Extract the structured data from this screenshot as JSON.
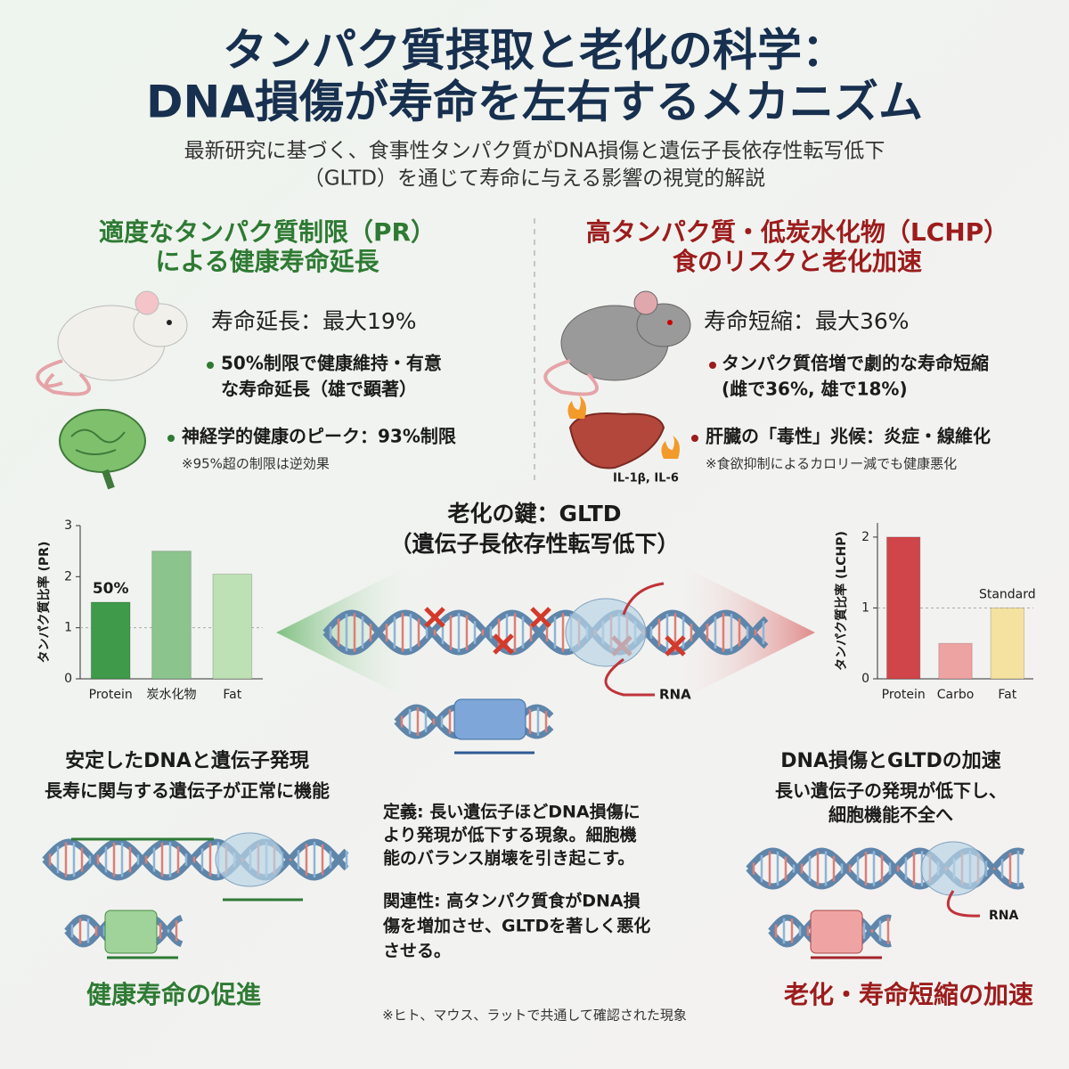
{
  "header": {
    "title": [
      "タンパク質摂取と老化の科学：",
      "DNA損傷が寿命を左右するメカニズム"
    ],
    "subtitle": [
      "最新研究に基づく、食事性タンパク質がDNA損傷と遺伝子長依存性転写低下",
      "（GLTD）を通じて寿命に与える影響の視覚的解説"
    ]
  },
  "left": {
    "heading": [
      "適度なタンパク質制限（PR）",
      "による健康寿命延長"
    ],
    "stat": "寿命延長：最大19%",
    "bullet1": [
      "50%制限で健康維持・有意",
      "な寿命延長（雄で顕著）"
    ],
    "bullet2": "神経学的健康のピーク：93%制限",
    "note": "※95%超の制限は逆効果"
  },
  "right": {
    "heading": [
      "高タンパク質・低炭水化物（LCHP）",
      "食のリスクと老化加速"
    ],
    "stat": "寿命短縮：最大36%",
    "bullet1": [
      "タンパク質倍増で劇的な寿命短縮",
      "(雌で36%, 雄で18%)"
    ],
    "bullet2": "肝臓の「毒性」兆候：炎症・線維化",
    "note": "※食欲抑制によるカロリー減でも健康悪化",
    "liver_label": "IL-1β, IL-6"
  },
  "center": {
    "title": [
      "老化の鍵：GLTD",
      "（遺伝子長依存性転写低下）"
    ],
    "rna": "RNA",
    "definition": [
      "定義: 長い遺伝子ほどDNA損傷に",
      "より発現が低下する現象。細胞機",
      "能のバランス崩壊を引き起こす。"
    ],
    "relation": [
      "関連性: 高タンパク質食がDNA損",
      "傷を増加させ、GLTDを著しく悪化",
      "させる。"
    ],
    "footnote": "※ヒト、マウス、ラットで共通して確認された現象"
  },
  "bottom_left": {
    "title": "安定したDNAと遺伝子発現",
    "subtitle": "長寿に関与する遺伝子が正常に機能",
    "footer": "健康寿命の促進"
  },
  "bottom_right": {
    "title": "DNA損傷とGLTDの加速",
    "subtitle": [
      "長い遺伝子の発現が低下し、",
      "細胞機能不全へ"
    ],
    "rna": "RNA",
    "footer": "老化・寿命短縮の加速"
  },
  "chart_data": [
    {
      "type": "bar",
      "y_label": "タンパク質比率 (PR)",
      "categories": [
        "Protein",
        "炭水化物",
        "Fat"
      ],
      "values": [
        1.5,
        2.5,
        2.05
      ],
      "colors": [
        "#3f9a4a",
        "#8cc48e",
        "#bde0b4"
      ],
      "ylim": [
        0,
        3
      ],
      "yticks": [
        0,
        1,
        2,
        3
      ],
      "reference_line": 1,
      "annotation": "50%"
    },
    {
      "type": "bar",
      "y_label": "タンパク質比率 (LCHP)",
      "categories": [
        "Protein",
        "Carbo",
        "Fat"
      ],
      "values": [
        2,
        0.5,
        1
      ],
      "colors": [
        "#cf4549",
        "#eea3a3",
        "#f5e2a0"
      ],
      "ylim": [
        0,
        2.2
      ],
      "yticks": [
        0,
        1,
        2
      ],
      "reference_line": 1,
      "annotation": "Standard"
    }
  ]
}
